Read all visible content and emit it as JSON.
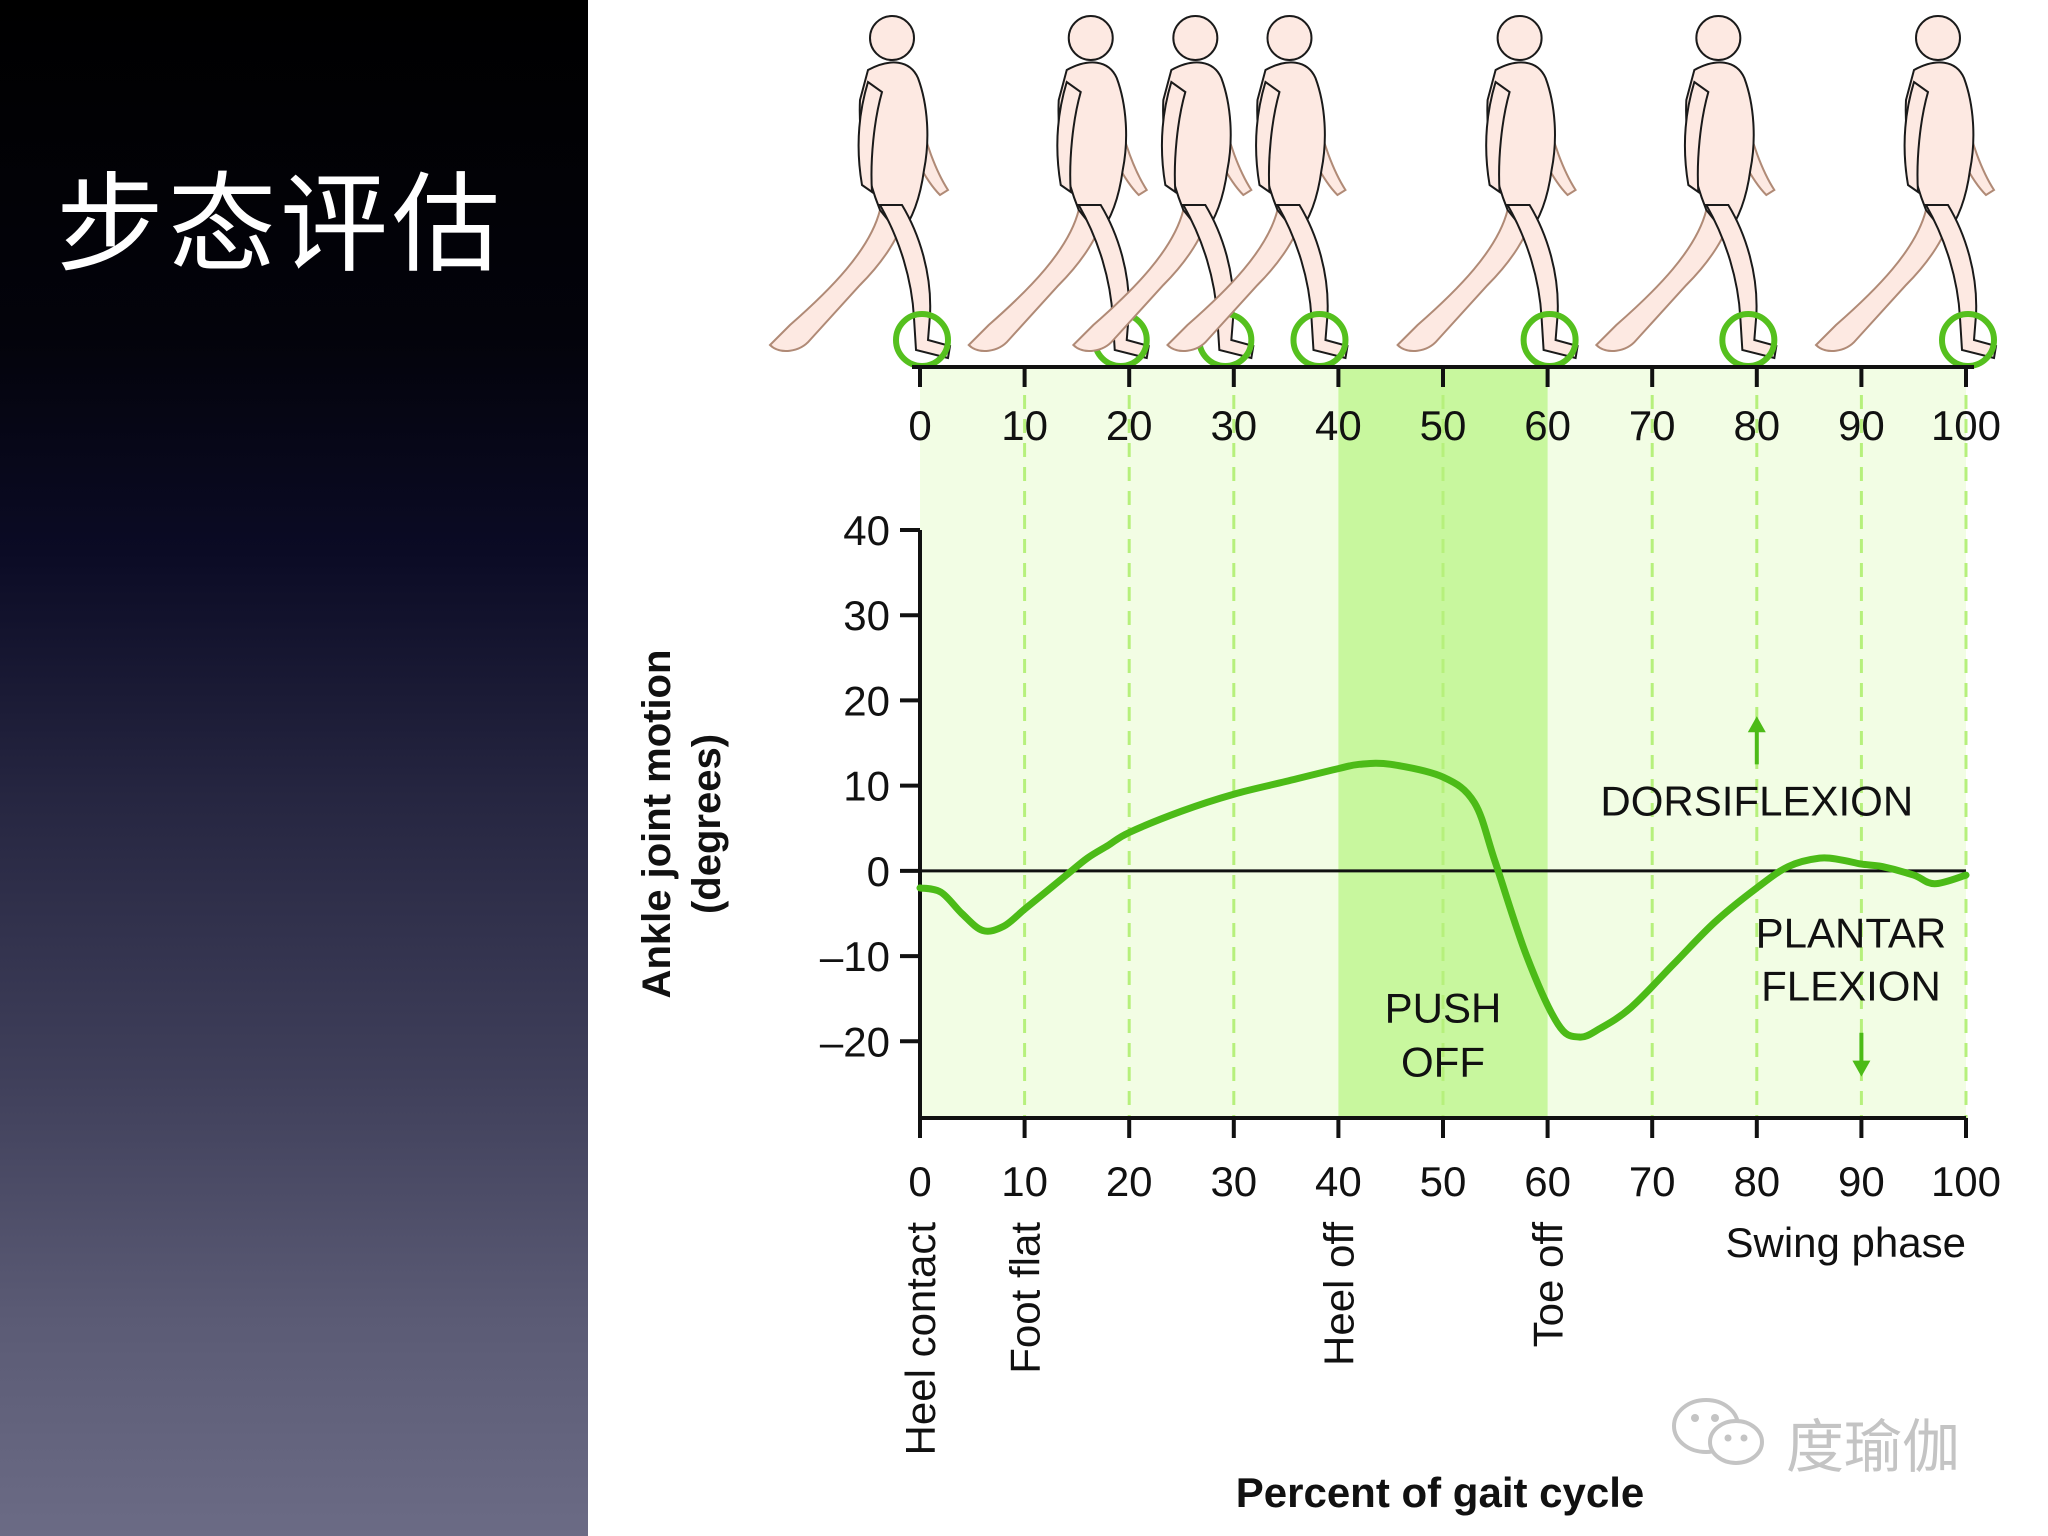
{
  "slide": {
    "title": "步态评估"
  },
  "watermark": {
    "text": "度瑜伽",
    "icon": "wechat-icon"
  },
  "colors": {
    "curve": "#4cbb17",
    "circle": "#55c01e",
    "band_light": "#f2fde4",
    "band_push": "#c8f79e",
    "dash": "#b6f07c",
    "skin": "#fde9e2",
    "skin_stroke": "#1a1a1a",
    "far_leg": "#b08a76"
  },
  "figure_positions": [
    0,
    19,
    29,
    38,
    60,
    79,
    100
  ],
  "chart_data": {
    "type": "line",
    "xlabel": "Percent of gait cycle",
    "ylabel": [
      "Ankle joint motion",
      "(degrees)"
    ],
    "xlim": [
      0,
      100
    ],
    "ylim": [
      -29,
      40
    ],
    "xticks": [
      "0",
      "10",
      "20",
      "30",
      "40",
      "50",
      "60",
      "70",
      "80",
      "90",
      "100"
    ],
    "yticks": [
      {
        "value": 40,
        "label": "40"
      },
      {
        "value": 30,
        "label": "30"
      },
      {
        "value": 20,
        "label": "20"
      },
      {
        "value": 10,
        "label": "10"
      },
      {
        "value": 0,
        "label": "0"
      },
      {
        "value": -10,
        "label": "–10"
      },
      {
        "value": -20,
        "label": "–20"
      }
    ],
    "grid": "dashed vertical lines every 10%",
    "push_off_band": [
      40,
      60
    ],
    "series": [
      {
        "x": [
          0,
          2,
          4,
          6,
          8,
          10,
          12,
          14,
          16,
          18,
          20,
          25,
          30,
          35,
          40,
          42,
          45,
          50,
          53,
          55,
          58,
          61,
          63,
          65,
          68,
          72,
          76,
          80,
          83,
          86,
          88,
          90,
          92,
          95,
          97,
          100
        ],
        "y": [
          -2,
          -2.5,
          -5,
          -7,
          -6.5,
          -4.5,
          -2.5,
          -0.5,
          1.5,
          3,
          4.5,
          7,
          9,
          10.5,
          12,
          12.5,
          12.5,
          11,
          8,
          1,
          -10,
          -18,
          -19.5,
          -18.5,
          -16,
          -11,
          -6,
          -2,
          0.5,
          1.5,
          1.3,
          0.8,
          0.5,
          -0.5,
          -1.5,
          -0.5
        ]
      }
    ],
    "annotations": {
      "dorsiflexion": "DORSIFLEXION",
      "plantar_flexion": [
        "PLANTAR",
        "FLEXION"
      ],
      "push_off": [
        "PUSH",
        "OFF"
      ],
      "swing_phase": "Swing phase"
    },
    "events": [
      {
        "x": 0,
        "label": "Heel contact"
      },
      {
        "x": 10,
        "label": "Foot flat"
      },
      {
        "x": 40,
        "label": "Heel off"
      },
      {
        "x": 60,
        "label": "Toe off"
      }
    ]
  }
}
